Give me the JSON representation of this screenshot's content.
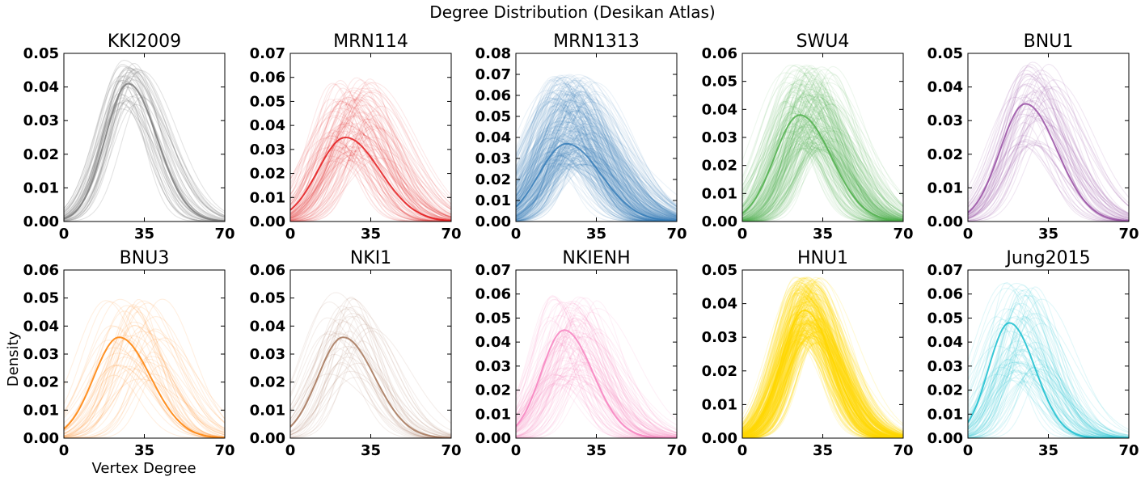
{
  "figure": {
    "title": "Degree Distribution (Desikan Atlas)",
    "ylabel": "Density",
    "xlabel": "Vertex Degree"
  },
  "chart_data": [
    {
      "type": "line",
      "title": "KKI2009",
      "color": "#7f7f7f",
      "xlim": [
        0,
        70
      ],
      "xticks": [
        0,
        35,
        70
      ],
      "ylim": [
        0,
        0.05
      ],
      "yticks": [
        "0.00",
        "0.01",
        "0.02",
        "0.03",
        "0.04",
        "0.05"
      ],
      "n_curves": 42,
      "mode_range": [
        22,
        34
      ],
      "peak_range": [
        0.033,
        0.048
      ],
      "width_range": [
        8,
        12
      ],
      "alpha": 0.22,
      "mean_curve": {
        "mode": 28,
        "peak": 0.041,
        "width": 10
      }
    },
    {
      "type": "line",
      "title": "MRN114",
      "color": "#e41a1c",
      "xlim": [
        0,
        70
      ],
      "xticks": [
        0,
        35,
        70
      ],
      "ylim": [
        0,
        0.07
      ],
      "yticks": [
        "0.00",
        "0.01",
        "0.02",
        "0.03",
        "0.04",
        "0.05",
        "0.06",
        "0.07"
      ],
      "n_curves": 114,
      "mode_range": [
        15,
        40
      ],
      "peak_range": [
        0.025,
        0.06
      ],
      "width_range": [
        8,
        15
      ],
      "alpha": 0.1,
      "mean_curve": {
        "mode": 24,
        "peak": 0.035,
        "width": 12
      }
    },
    {
      "type": "line",
      "title": "MRN1313",
      "color": "#377eb8",
      "xlim": [
        0,
        70
      ],
      "xticks": [
        0,
        35,
        70
      ],
      "ylim": [
        0,
        0.08
      ],
      "yticks": [
        "0.00",
        "0.01",
        "0.02",
        "0.03",
        "0.04",
        "0.05",
        "0.06",
        "0.07",
        "0.08"
      ],
      "n_curves": 320,
      "mode_range": [
        13,
        35
      ],
      "peak_range": [
        0.025,
        0.07
      ],
      "width_range": [
        8,
        16
      ],
      "alpha": 0.1,
      "mean_curve": {
        "mode": 22,
        "peak": 0.037,
        "width": 12
      }
    },
    {
      "type": "line",
      "title": "SWU4",
      "color": "#4daf4a",
      "xlim": [
        0,
        70
      ],
      "xticks": [
        0,
        35,
        70
      ],
      "ylim": [
        0,
        0.06
      ],
      "yticks": [
        "0.00",
        "0.01",
        "0.02",
        "0.03",
        "0.04",
        "0.05",
        "0.06"
      ],
      "n_curves": 230,
      "mode_range": [
        18,
        40
      ],
      "peak_range": [
        0.025,
        0.056
      ],
      "width_range": [
        8,
        14
      ],
      "alpha": 0.1,
      "mean_curve": {
        "mode": 25,
        "peak": 0.038,
        "width": 11
      }
    },
    {
      "type": "line",
      "title": "BNU1",
      "color": "#984ea3",
      "xlim": [
        0,
        70
      ],
      "xticks": [
        0,
        35,
        70
      ],
      "ylim": [
        0,
        0.05
      ],
      "yticks": [
        "0.00",
        "0.01",
        "0.02",
        "0.03",
        "0.04",
        "0.05"
      ],
      "n_curves": 57,
      "mode_range": [
        20,
        38
      ],
      "peak_range": [
        0.022,
        0.048
      ],
      "width_range": [
        9,
        14
      ],
      "alpha": 0.14,
      "mean_curve": {
        "mode": 25,
        "peak": 0.035,
        "width": 11
      }
    },
    {
      "type": "line",
      "title": "BNU3",
      "color": "#ff7f00",
      "xlim": [
        0,
        70
      ],
      "xticks": [
        0,
        35,
        70
      ],
      "ylim": [
        0,
        0.06
      ],
      "yticks": [
        "0.00",
        "0.01",
        "0.02",
        "0.03",
        "0.04",
        "0.05",
        "0.06"
      ],
      "n_curves": 47,
      "mode_range": [
        18,
        44
      ],
      "peak_range": [
        0.02,
        0.05
      ],
      "width_range": [
        8,
        14
      ],
      "alpha": 0.12,
      "mean_curve": {
        "mode": 24,
        "peak": 0.036,
        "width": 11
      }
    },
    {
      "type": "line",
      "title": "NKI1",
      "color": "#a6775a",
      "xlim": [
        0,
        70
      ],
      "xticks": [
        0,
        35,
        70
      ],
      "ylim": [
        0,
        0.06
      ],
      "yticks": [
        "0.00",
        "0.01",
        "0.02",
        "0.03",
        "0.04",
        "0.05",
        "0.06"
      ],
      "n_curves": 40,
      "mode_range": [
        15,
        38
      ],
      "peak_range": [
        0.02,
        0.052
      ],
      "width_range": [
        8,
        14
      ],
      "alpha": 0.12,
      "mean_curve": {
        "mode": 23,
        "peak": 0.036,
        "width": 11
      }
    },
    {
      "type": "line",
      "title": "NKIENH",
      "color": "#f781bf",
      "xlim": [
        0,
        70
      ],
      "xticks": [
        0,
        35,
        70
      ],
      "ylim": [
        0,
        0.07
      ],
      "yticks": [
        "0.00",
        "0.01",
        "0.02",
        "0.03",
        "0.04",
        "0.05",
        "0.06",
        "0.07"
      ],
      "n_curves": 100,
      "mode_range": [
        13,
        36
      ],
      "peak_range": [
        0.022,
        0.06
      ],
      "width_range": [
        7,
        14
      ],
      "alpha": 0.12,
      "mean_curve": {
        "mode": 21,
        "peak": 0.045,
        "width": 10
      }
    },
    {
      "type": "line",
      "title": "HNU1",
      "color": "#ffd700",
      "xlim": [
        0,
        70
      ],
      "xticks": [
        0,
        35,
        70
      ],
      "ylim": [
        0,
        0.05
      ],
      "yticks": [
        "0.00",
        "0.01",
        "0.02",
        "0.03",
        "0.04",
        "0.05"
      ],
      "n_curves": 300,
      "mode_range": [
        22,
        34
      ],
      "peak_range": [
        0.028,
        0.048
      ],
      "width_range": [
        8,
        12
      ],
      "alpha": 0.16,
      "mean_curve": {
        "mode": 27,
        "peak": 0.038,
        "width": 10
      }
    },
    {
      "type": "line",
      "title": "Jung2015",
      "color": "#17becf",
      "xlim": [
        0,
        70
      ],
      "xticks": [
        0,
        35,
        70
      ],
      "ylim": [
        0,
        0.07
      ],
      "yticks": [
        "0.00",
        "0.01",
        "0.02",
        "0.03",
        "0.04",
        "0.05",
        "0.06",
        "0.07"
      ],
      "n_curves": 80,
      "mode_range": [
        12,
        34
      ],
      "peak_range": [
        0.022,
        0.065
      ],
      "width_range": [
        7,
        14
      ],
      "alpha": 0.13,
      "mean_curve": {
        "mode": 18,
        "peak": 0.048,
        "width": 9
      }
    }
  ]
}
